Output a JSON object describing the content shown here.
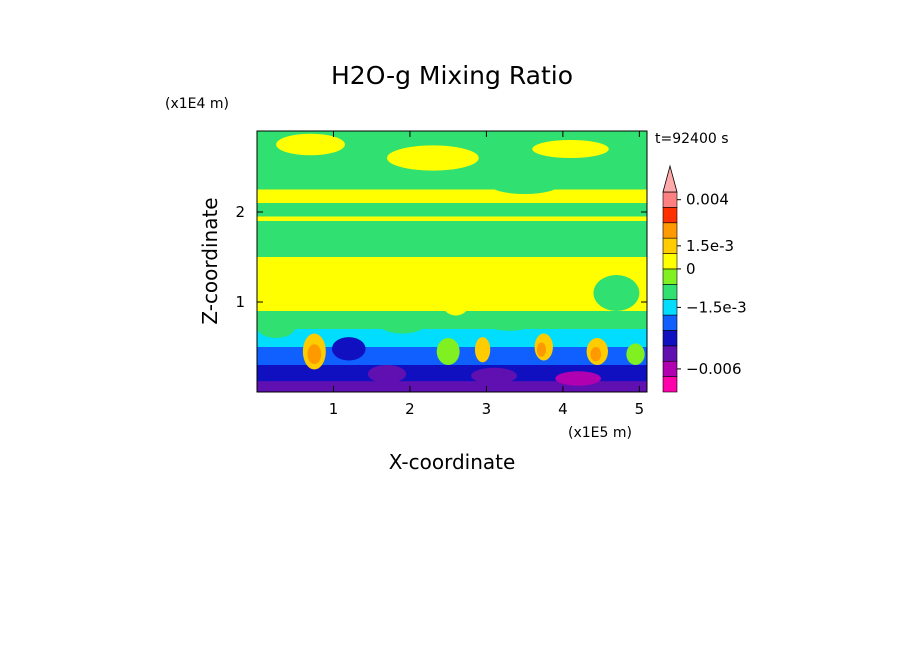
{
  "chart_data": {
    "type": "heatmap",
    "title": "H2O-g Mixing Ratio",
    "xlabel": "X-coordinate",
    "ylabel": "Z-coordinate",
    "x_unit": "(x1E5 m)",
    "y_unit": "(x1E4 m)",
    "time_label": "t=92400 s",
    "xlim": [
      0,
      5.1
    ],
    "ylim": [
      0,
      2.9
    ],
    "x_ticks": [
      1,
      2,
      3,
      4,
      5
    ],
    "y_ticks": [
      1,
      2
    ],
    "x_tick_labels": [
      "1",
      "2",
      "3",
      "4",
      "5"
    ],
    "y_tick_labels": [
      "1",
      "2"
    ],
    "colorbar": {
      "colors": [
        "#ff00aa",
        "#b000b0",
        "#6010b0",
        "#1010c0",
        "#1060ff",
        "#00ddff",
        "#30e070",
        "#80f020",
        "#ffff00",
        "#ffcc00",
        "#ff9900",
        "#ff3000",
        "#ff8080",
        "#ffaaaa"
      ],
      "labels": [
        {
          "text": "0.004",
          "level": 12.5
        },
        {
          "text": "1.5e-3",
          "level": 9.5
        },
        {
          "text": "0",
          "level": 8
        },
        {
          "text": "−1.5e-3",
          "level": 5.5
        },
        {
          "text": "−0.006",
          "level": 1.5
        }
      ]
    },
    "field_layers": [
      {
        "z": 2.9,
        "color": "#30e070"
      },
      {
        "z": 2.25,
        "color": "#ffff00"
      },
      {
        "z": 2.1,
        "color": "#30e070"
      },
      {
        "z": 1.95,
        "color": "#ffff00"
      },
      {
        "z": 1.9,
        "color": "#30e070"
      },
      {
        "z": 1.5,
        "color": "#ffff00"
      },
      {
        "z": 0.9,
        "color": "#30e070"
      },
      {
        "z": 0.7,
        "color": "#00ddff"
      },
      {
        "z": 0.5,
        "color": "#1060ff"
      },
      {
        "z": 0.3,
        "color": "#1010c0"
      },
      {
        "z": 0.12,
        "color": "#6010b0"
      }
    ],
    "field_blobs": [
      {
        "x": 0.7,
        "z": 2.75,
        "rx": 0.45,
        "rz": 0.12,
        "color": "#ffff00"
      },
      {
        "x": 2.3,
        "z": 2.6,
        "rx": 0.6,
        "rz": 0.14,
        "color": "#ffff00"
      },
      {
        "x": 4.1,
        "z": 2.7,
        "rx": 0.5,
        "rz": 0.1,
        "color": "#ffff00"
      },
      {
        "x": 1.6,
        "z": 2.35,
        "rx": 0.35,
        "rz": 0.08,
        "color": "#30e070"
      },
      {
        "x": 3.5,
        "z": 2.3,
        "rx": 0.45,
        "rz": 0.1,
        "color": "#30e070"
      },
      {
        "x": 0.3,
        "z": 1.7,
        "rx": 0.35,
        "rz": 0.12,
        "color": "#30e070"
      },
      {
        "x": 1.2,
        "z": 1.25,
        "rx": 0.3,
        "rz": 0.25,
        "color": "#ffff00"
      },
      {
        "x": 2.6,
        "z": 1.15,
        "rx": 0.25,
        "rz": 0.3,
        "color": "#ffff00"
      },
      {
        "x": 3.9,
        "z": 1.2,
        "rx": 0.35,
        "rz": 0.25,
        "color": "#ffff00"
      },
      {
        "x": 4.7,
        "z": 1.1,
        "rx": 0.3,
        "rz": 0.2,
        "color": "#30e070"
      },
      {
        "x": 0.25,
        "z": 0.72,
        "rx": 0.25,
        "rz": 0.12,
        "color": "#30e070"
      },
      {
        "x": 1.9,
        "z": 0.75,
        "rx": 0.3,
        "rz": 0.1,
        "color": "#30e070"
      },
      {
        "x": 3.3,
        "z": 0.78,
        "rx": 0.35,
        "rz": 0.1,
        "color": "#30e070"
      },
      {
        "x": 0.75,
        "z": 0.45,
        "rx": 0.15,
        "rz": 0.2,
        "color": "#ffcc00"
      },
      {
        "x": 0.75,
        "z": 0.42,
        "rx": 0.09,
        "rz": 0.11,
        "color": "#ff9900"
      },
      {
        "x": 1.2,
        "z": 0.48,
        "rx": 0.22,
        "rz": 0.13,
        "color": "#1010c0"
      },
      {
        "x": 2.5,
        "z": 0.45,
        "rx": 0.15,
        "rz": 0.15,
        "color": "#80f020"
      },
      {
        "x": 2.95,
        "z": 0.47,
        "rx": 0.1,
        "rz": 0.14,
        "color": "#ffcc00"
      },
      {
        "x": 3.75,
        "z": 0.5,
        "rx": 0.12,
        "rz": 0.15,
        "color": "#ffcc00"
      },
      {
        "x": 3.72,
        "z": 0.47,
        "rx": 0.06,
        "rz": 0.08,
        "color": "#ff9900"
      },
      {
        "x": 4.45,
        "z": 0.45,
        "rx": 0.14,
        "rz": 0.15,
        "color": "#ffcc00"
      },
      {
        "x": 4.43,
        "z": 0.42,
        "rx": 0.07,
        "rz": 0.08,
        "color": "#ff9900"
      },
      {
        "x": 4.95,
        "z": 0.42,
        "rx": 0.12,
        "rz": 0.12,
        "color": "#80f020"
      },
      {
        "x": 1.7,
        "z": 0.2,
        "rx": 0.25,
        "rz": 0.1,
        "color": "#6010b0"
      },
      {
        "x": 3.1,
        "z": 0.18,
        "rx": 0.3,
        "rz": 0.09,
        "color": "#6010b0"
      },
      {
        "x": 4.2,
        "z": 0.15,
        "rx": 0.3,
        "rz": 0.08,
        "color": "#b000b0"
      }
    ]
  }
}
